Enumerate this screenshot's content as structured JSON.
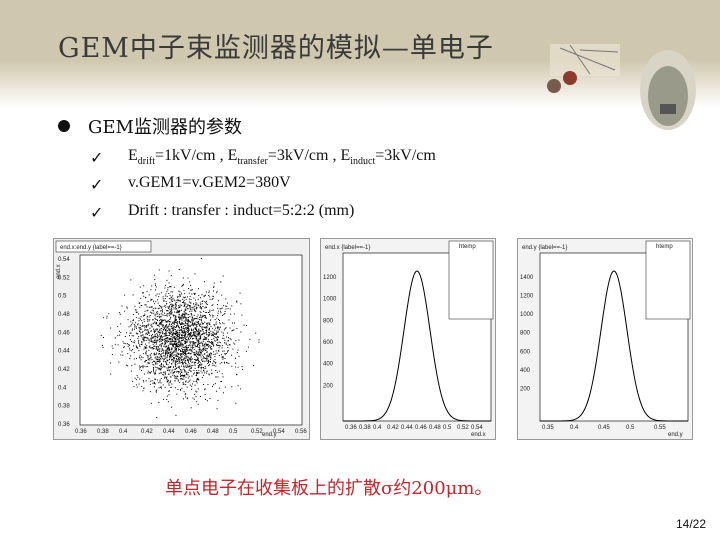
{
  "slide": {
    "title": "GEM中子束监测器的模拟—单电子",
    "bullet": "GEM监测器的参数",
    "items": [
      {
        "parts": [
          {
            "t": "E"
          },
          {
            "s": "drift"
          },
          {
            "t": "=1kV/cm , E"
          },
          {
            "s": "transfer"
          },
          {
            "t": "=3kV/cm , E"
          },
          {
            "s": "induct"
          },
          {
            "t": "=3kV/cm"
          }
        ]
      },
      {
        "text": "v.GEM1=v.GEM2=380V"
      },
      {
        "text": "Drift : transfer : induct=5:2:2 (mm)"
      }
    ],
    "check_glyph": "✓",
    "caption": "单点电子在收集板上的扩散σ约200μm。",
    "page": "14/22"
  },
  "plots": {
    "scatter": {
      "title": "end.x:end.y {label==-1}",
      "xlabel": "end.y",
      "ylabel": "end.x",
      "xticks": [
        "0.36",
        "0.38",
        "0.4",
        "0.42",
        "0.44",
        "0.46",
        "0.48",
        "0.5",
        "0.52",
        "0.54",
        "0.56"
      ],
      "yticks": [
        "0.54",
        "0.52",
        "0.5",
        "0.48",
        "0.46",
        "0.44",
        "0.42",
        "0.4",
        "0.38",
        "0.36"
      ]
    },
    "hist1": {
      "title": "end.x {label==-1}",
      "xlabel": "end.x",
      "yticks": [
        "1200",
        "1000",
        "800",
        "600",
        "400",
        "200"
      ],
      "xticks": [
        "0.36",
        "0.38",
        "0.4",
        "0.42",
        "0.44",
        "0.46",
        "0.48",
        "0.5",
        "0.52",
        "0.54"
      ],
      "stats_title": "htemp"
    },
    "hist2": {
      "title": "end.y {label==-1}",
      "xlabel": "end.y",
      "yticks": [
        "1400",
        "1200",
        "1000",
        "800",
        "600",
        "400",
        "200"
      ],
      "xticks": [
        "0.35",
        "0.4",
        "0.45",
        "0.5",
        "0.55"
      ],
      "stats_title": "htemp"
    }
  },
  "colors": {
    "header": "#cfc7ae",
    "caption": "#c0282d"
  }
}
